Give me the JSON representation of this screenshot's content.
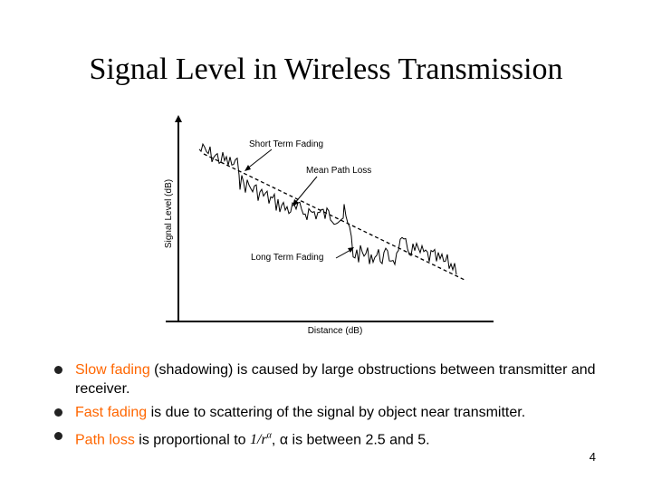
{
  "title": "Signal Level in Wireless Transmission",
  "figure": {
    "y_axis_label": "Signal Level (dB)",
    "x_axis_label": "Distance (dB)",
    "annotations": {
      "short_term": "Short Term Fading",
      "mean_path": "Mean Path Loss",
      "long_term": "Long Term Fading"
    }
  },
  "bullets": [
    {
      "term": "Slow fading",
      "rest": " (shadowing) is caused by large obstructions between transmitter and receiver."
    },
    {
      "term": "Fast fading",
      "rest": " is due to scattering of the signal by object near transmitter."
    },
    {
      "term": "Path loss",
      "rest_before": " is proportional to ",
      "formula_num": "1/r",
      "formula_exp": "α",
      "rest_after": ", α is between 2.5 and 5."
    }
  ],
  "page_number": "4"
}
